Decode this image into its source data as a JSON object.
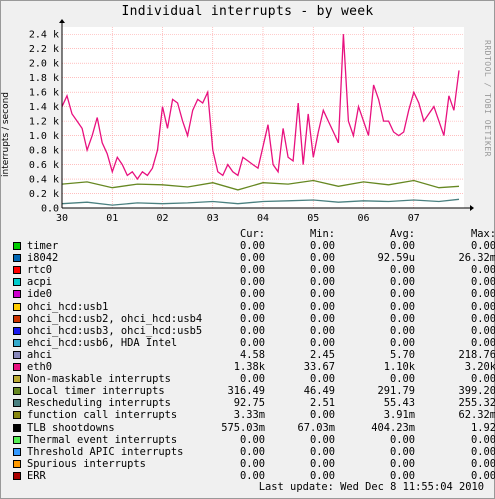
{
  "window": {
    "title": "Individual interrupts - by week",
    "side_credit": "RRDTOOL / TOBI OETIKER",
    "last_update": "Last update: Wed Dec  8 11:55:04 2010"
  },
  "colors": {
    "background": "#f0f0f0",
    "plot_background": "#ffffff",
    "grid": "#ff9999",
    "series_eth0": "#e8117f",
    "series_local_timer": "#668822",
    "series_rescheduling": "#4a8080"
  },
  "chart_data": {
    "type": "line",
    "title": "Individual interrupts - by week",
    "ylabel": "interrupts / second",
    "ylim": [
      0,
      2500
    ],
    "yticks": [
      0.0,
      200,
      400,
      600,
      800,
      1000,
      1200,
      1400,
      1600,
      1800,
      2000,
      2200,
      2400
    ],
    "ytick_labels": [
      "0.0",
      "0.2 k",
      "0.4 k",
      "0.6 k",
      "0.8 k",
      "1.0 k",
      "1.2 k",
      "1.4 k",
      "1.6 k",
      "1.8 k",
      "2.0 k",
      "2.2 k",
      "2.4 k"
    ],
    "xlim": [
      0,
      8
    ],
    "xticks": [
      0,
      1,
      2,
      3,
      4,
      5,
      6,
      7
    ],
    "xtick_labels": [
      "30",
      "01",
      "02",
      "03",
      "04",
      "05",
      "06",
      "07"
    ],
    "grid": true,
    "series": [
      {
        "name": "eth0",
        "color": "#e8117f",
        "x": [
          0.0,
          0.1,
          0.2,
          0.3,
          0.4,
          0.5,
          0.6,
          0.7,
          0.8,
          0.9,
          1.0,
          1.1,
          1.2,
          1.3,
          1.4,
          1.5,
          1.6,
          1.7,
          1.8,
          1.9,
          2.0,
          2.1,
          2.2,
          2.3,
          2.4,
          2.5,
          2.6,
          2.7,
          2.8,
          2.9,
          3.0,
          3.1,
          3.2,
          3.3,
          3.4,
          3.5,
          3.6,
          3.7,
          3.8,
          3.9,
          4.0,
          4.1,
          4.2,
          4.3,
          4.4,
          4.5,
          4.6,
          4.7,
          4.8,
          4.9,
          5.0,
          5.1,
          5.2,
          5.3,
          5.4,
          5.5,
          5.6,
          5.7,
          5.8,
          5.9,
          6.0,
          6.1,
          6.2,
          6.3,
          6.4,
          6.5,
          6.6,
          6.7,
          6.8,
          6.9,
          7.0,
          7.1,
          7.2,
          7.3,
          7.4,
          7.5,
          7.6,
          7.7,
          7.8,
          7.9
        ],
        "y": [
          1400,
          1550,
          1300,
          1200,
          1100,
          800,
          1000,
          1250,
          900,
          750,
          500,
          700,
          600,
          450,
          500,
          400,
          500,
          450,
          550,
          800,
          1400,
          1100,
          1500,
          1450,
          1200,
          1000,
          1350,
          1500,
          1450,
          1600,
          800,
          500,
          450,
          600,
          500,
          450,
          700,
          650,
          600,
          550,
          850,
          1150,
          600,
          500,
          1100,
          700,
          650,
          1450,
          600,
          1300,
          700,
          1050,
          1350,
          1200,
          1050,
          900,
          2400,
          1200,
          1000,
          1400,
          1200,
          1000,
          1700,
          1500,
          1200,
          1200,
          1050,
          1000,
          1050,
          1350,
          1600,
          1450,
          1200,
          1300,
          1400,
          1200,
          1000,
          1550,
          1350,
          1900
        ]
      },
      {
        "name": "Local timer interrupts",
        "color": "#668822",
        "x": [
          0.0,
          0.5,
          1.0,
          1.5,
          2.0,
          2.5,
          3.0,
          3.5,
          4.0,
          4.5,
          5.0,
          5.5,
          6.0,
          6.5,
          7.0,
          7.5,
          7.9
        ],
        "y": [
          330,
          360,
          280,
          330,
          320,
          290,
          350,
          250,
          350,
          330,
          380,
          300,
          360,
          320,
          380,
          280,
          300
        ]
      },
      {
        "name": "Rescheduling interrupts",
        "color": "#4a8080",
        "x": [
          0.0,
          0.5,
          1.0,
          1.5,
          2.0,
          2.5,
          3.0,
          3.5,
          4.0,
          4.5,
          5.0,
          5.5,
          6.0,
          6.5,
          7.0,
          7.5,
          7.9
        ],
        "y": [
          60,
          80,
          40,
          70,
          60,
          70,
          90,
          60,
          90,
          100,
          110,
          80,
          100,
          90,
          110,
          90,
          120
        ]
      }
    ]
  },
  "legend": {
    "headers": [
      "Cur:",
      "Min:",
      "Avg:",
      "Max:"
    ],
    "rows": [
      {
        "name": "timer",
        "color": "#00cc00",
        "cur": "0.00",
        "min": "0.00",
        "avg": "0.00",
        "max": "0.00"
      },
      {
        "name": "i8042",
        "color": "#0066b3",
        "cur": "0.00",
        "min": "0.00",
        "avg": "92.59u",
        "max": "26.32m"
      },
      {
        "name": "rtc0",
        "color": "#ff0000",
        "cur": "0.00",
        "min": "0.00",
        "avg": "0.00",
        "max": "0.00"
      },
      {
        "name": "acpi",
        "color": "#00cccc",
        "cur": "0.00",
        "min": "0.00",
        "avg": "0.00",
        "max": "0.00"
      },
      {
        "name": "ide0",
        "color": "#cc00cc",
        "cur": "0.00",
        "min": "0.00",
        "avg": "0.00",
        "max": "0.00"
      },
      {
        "name": "ohci_hcd:usb1",
        "color": "#ffcc00",
        "cur": "0.00",
        "min": "0.00",
        "avg": "0.00",
        "max": "0.00"
      },
      {
        "name": "ohci_hcd:usb2, ohci_hcd:usb4",
        "color": "#cc3300",
        "cur": "0.00",
        "min": "0.00",
        "avg": "0.00",
        "max": "0.00"
      },
      {
        "name": "ohci_hcd:usb3, ohci_hcd:usb5",
        "color": "#1a1aee",
        "cur": "0.00",
        "min": "0.00",
        "avg": "0.00",
        "max": "0.00"
      },
      {
        "name": "ehci_hcd:usb6, HDA Intel",
        "color": "#33aacc",
        "cur": "0.00",
        "min": "0.00",
        "avg": "0.00",
        "max": "0.00"
      },
      {
        "name": "ahci",
        "color": "#8888bb",
        "cur": "4.58",
        "min": "2.45",
        "avg": "5.70",
        "max": "218.76"
      },
      {
        "name": "eth0",
        "color": "#e8117f",
        "cur": "1.38k",
        "min": "33.67",
        "avg": "1.10k",
        "max": "3.20k"
      },
      {
        "name": "Non-maskable interrupts",
        "color": "#bbaa33",
        "cur": "0.00",
        "min": "0.00",
        "avg": "0.00",
        "max": "0.00"
      },
      {
        "name": "Local timer interrupts",
        "color": "#668822",
        "cur": "316.49",
        "min": "46.49",
        "avg": "291.79",
        "max": "399.20"
      },
      {
        "name": "Rescheduling interrupts",
        "color": "#4a8080",
        "cur": "92.75",
        "min": "2.51",
        "avg": "55.43",
        "max": "255.32"
      },
      {
        "name": "function call interrupts",
        "color": "#888811",
        "cur": "3.33m",
        "min": "0.00",
        "avg": "3.91m",
        "max": "62.32m"
      },
      {
        "name": "TLB shootdowns",
        "color": "#000000",
        "cur": "575.03m",
        "min": "67.03m",
        "avg": "404.23m",
        "max": "1.92"
      },
      {
        "name": "Thermal event interrupts",
        "color": "#55ee55",
        "cur": "0.00",
        "min": "0.00",
        "avg": "0.00",
        "max": "0.00"
      },
      {
        "name": "Threshold APIC interrupts",
        "color": "#3399ff",
        "cur": "0.00",
        "min": "0.00",
        "avg": "0.00",
        "max": "0.00"
      },
      {
        "name": "Spurious interrupts",
        "color": "#ff9900",
        "cur": "0.00",
        "min": "0.00",
        "avg": "0.00",
        "max": "0.00"
      },
      {
        "name": "ERR",
        "color": "#aa0000",
        "cur": "0.00",
        "min": "0.00",
        "avg": "0.00",
        "max": "0.00"
      }
    ]
  }
}
